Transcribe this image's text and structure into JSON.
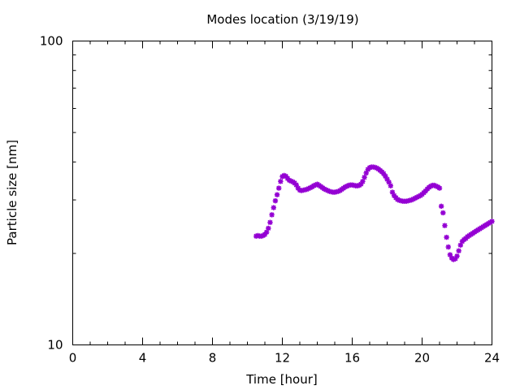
{
  "chart_data": {
    "type": "scatter",
    "title": "Modes location (3/19/19)",
    "xlabel": "Time [hour]",
    "ylabel": "Particle size [nm]",
    "xlim": [
      0,
      24
    ],
    "ylim": [
      10,
      100
    ],
    "yscale": "log",
    "xticks": [
      "0",
      "4",
      "8",
      "12",
      "16",
      "20",
      "24"
    ],
    "yticks": [
      "10",
      "100"
    ],
    "grid": false,
    "marker_color": "#9400d3",
    "series": [
      {
        "x": [
          10.5,
          10.6,
          10.7,
          10.8,
          10.9,
          11.0,
          11.1,
          11.2,
          11.3,
          11.4,
          11.5,
          11.6,
          11.7,
          11.8,
          11.9,
          12.0,
          12.1,
          12.2,
          12.3,
          12.4,
          12.5,
          12.6,
          12.7,
          12.8,
          12.9,
          13.0,
          13.1,
          13.2,
          13.3,
          13.4,
          13.5,
          13.6,
          13.7,
          13.8,
          13.9,
          14.0,
          14.1,
          14.2,
          14.3,
          14.4,
          14.5,
          14.6,
          14.7,
          14.8,
          14.9,
          15.0,
          15.1,
          15.2,
          15.3,
          15.4,
          15.5,
          15.6,
          15.7,
          15.8,
          15.9,
          16.0,
          16.1,
          16.2,
          16.3,
          16.4,
          16.5,
          16.6,
          16.7,
          16.8,
          16.9,
          17.0,
          17.1,
          17.2,
          17.3,
          17.4,
          17.5,
          17.6,
          17.7,
          17.8,
          17.9,
          18.0,
          18.1,
          18.2,
          18.3,
          18.4,
          18.5,
          18.6,
          18.7,
          18.8,
          18.9,
          19.0,
          19.1,
          19.2,
          19.3,
          19.4,
          19.5,
          19.6,
          19.7,
          19.8,
          19.9,
          20.0,
          20.1,
          20.2,
          20.3,
          20.4,
          20.5,
          20.6,
          20.7,
          20.8,
          20.9,
          21.0,
          21.1,
          21.2,
          21.3,
          21.4,
          21.5,
          21.6,
          21.7,
          21.8,
          21.9,
          22.0,
          22.1,
          22.2,
          22.3,
          22.4,
          22.5,
          22.6,
          22.7,
          22.8,
          22.9,
          23.0,
          23.1,
          23.2,
          23.3,
          23.4,
          23.5,
          23.6,
          23.7,
          23.8,
          23.9,
          24.0
        ],
        "y": [
          22.8,
          22.9,
          22.8,
          22.8,
          22.9,
          23.1,
          23.5,
          24.2,
          25.3,
          26.8,
          28.3,
          29.8,
          31.2,
          32.8,
          34.5,
          35.8,
          36.1,
          35.9,
          35.3,
          34.8,
          34.6,
          34.4,
          34.1,
          33.6,
          32.8,
          32.3,
          32.2,
          32.3,
          32.4,
          32.5,
          32.7,
          32.9,
          33.1,
          33.4,
          33.6,
          33.8,
          33.5,
          33.2,
          32.9,
          32.6,
          32.4,
          32.2,
          32.0,
          31.9,
          31.8,
          31.8,
          31.9,
          32.0,
          32.2,
          32.5,
          32.8,
          33.1,
          33.3,
          33.5,
          33.6,
          33.6,
          33.5,
          33.4,
          33.4,
          33.5,
          33.8,
          34.5,
          35.6,
          36.8,
          37.8,
          38.3,
          38.5,
          38.5,
          38.4,
          38.2,
          37.9,
          37.5,
          37.1,
          36.6,
          35.9,
          35.1,
          34.3,
          33.4,
          31.8,
          31.0,
          30.5,
          30.1,
          29.9,
          29.8,
          29.7,
          29.7,
          29.7,
          29.8,
          29.9,
          30.0,
          30.2,
          30.4,
          30.6,
          30.8,
          31.0,
          31.3,
          31.7,
          32.1,
          32.6,
          33.0,
          33.3,
          33.5,
          33.5,
          33.3,
          33.1,
          32.8,
          28.6,
          27.2,
          24.7,
          22.6,
          21.0,
          19.8,
          19.3,
          19.1,
          19.2,
          19.6,
          20.4,
          21.3,
          21.9,
          22.2,
          22.4,
          22.7,
          22.9,
          23.1,
          23.3,
          23.5,
          23.7,
          23.9,
          24.1,
          24.3,
          24.5,
          24.7,
          24.9,
          25.1,
          25.3,
          25.5
        ]
      }
    ]
  }
}
